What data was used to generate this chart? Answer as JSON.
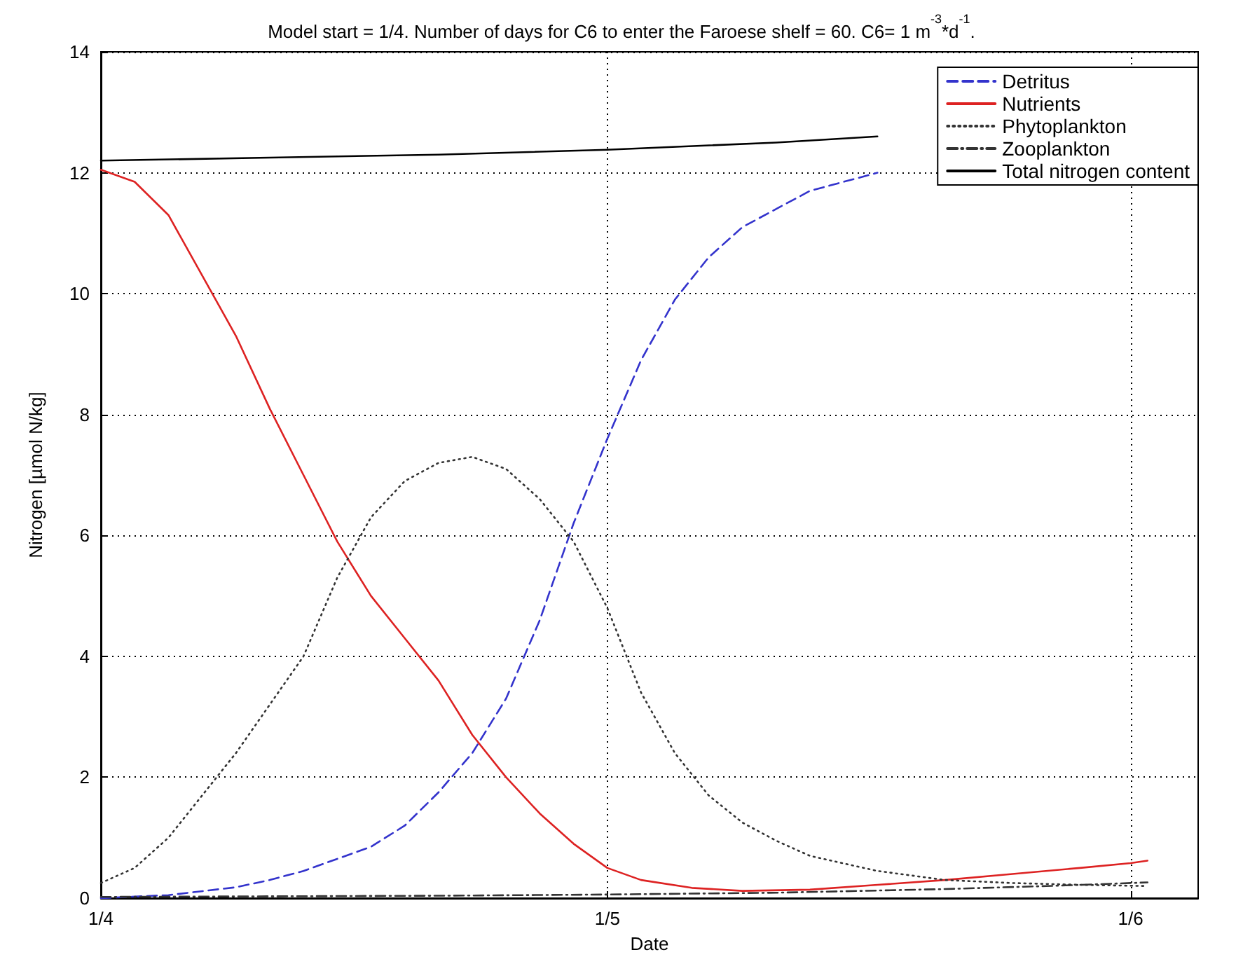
{
  "chart_data": {
    "type": "line",
    "title": "Model start = 1/4. Number of days for C6 to enter the Faroese shelf = 60. C6= 1 m$^{-3}$*d$^{-1}$.",
    "xlabel": "Date",
    "ylabel": "Nitrogen [µmol N/kg]",
    "xlim": [
      "--04-01",
      "--06-05"
    ],
    "xticks": [
      {
        "value": "--04-01",
        "label": "1/4"
      },
      {
        "value": "--05-01",
        "label": "1/5"
      },
      {
        "value": "--06-01",
        "label": "1/6"
      }
    ],
    "ylim": [
      0,
      14
    ],
    "yticks": [
      0,
      2,
      4,
      6,
      8,
      10,
      12,
      14
    ],
    "grid": true,
    "legend": "top right",
    "marker": "none",
    "series": [
      {
        "name": "Detritus",
        "color": "#3333cc",
        "line_style": "dashed",
        "x": [
          "--04-01",
          "--04-05",
          "--04-09",
          "--04-11",
          "--04-13",
          "--04-15",
          "--04-17",
          "--04-19",
          "--04-21",
          "--04-23",
          "--04-25",
          "--04-27",
          "--04-29",
          "--05-01",
          "--05-03",
          "--05-05",
          "--05-07",
          "--05-09",
          "--05-13",
          "--05-17"
        ],
        "values": [
          0,
          0.05,
          0.18,
          0.3,
          0.45,
          0.65,
          0.85,
          1.2,
          1.75,
          2.4,
          3.3,
          4.6,
          6.2,
          7.6,
          8.9,
          9.9,
          10.6,
          11.1,
          11.7,
          12.0
        ]
      },
      {
        "name": "Nutrients",
        "color": "#dd2222",
        "line_style": "solid",
        "x": [
          "--04-01",
          "--04-03",
          "--04-05",
          "--04-08",
          "--04-09",
          "--04-11",
          "--04-13",
          "--04-15",
          "--04-17",
          "--04-19",
          "--04-21",
          "--04-23",
          "--04-25",
          "--04-27",
          "--04-29",
          "--05-01",
          "--05-03",
          "--05-06",
          "--05-09",
          "--05-13",
          "--05-17",
          "--05-21",
          "--05-25",
          "--05-29",
          "--06-01",
          "--06-02"
        ],
        "values": [
          12.05,
          11.85,
          11.3,
          9.8,
          9.3,
          8.1,
          7.0,
          5.9,
          5.0,
          4.3,
          3.6,
          2.7,
          2.0,
          1.4,
          0.9,
          0.5,
          0.3,
          0.17,
          0.12,
          0.14,
          0.22,
          0.3,
          0.4,
          0.5,
          0.58,
          0.62
        ]
      },
      {
        "name": "Phytoplankton",
        "color": "#333333",
        "line_style": "dotted",
        "x": [
          "--04-01",
          "--04-03",
          "--04-05",
          "--04-07",
          "--04-09",
          "--04-11",
          "--04-13",
          "--04-15",
          "--04-17",
          "--04-19",
          "--04-21",
          "--04-23",
          "--04-25",
          "--04-27",
          "--04-29",
          "--05-01",
          "--05-03",
          "--05-05",
          "--05-07",
          "--05-09",
          "--05-11",
          "--05-13",
          "--05-17",
          "--05-21",
          "--05-25",
          "--05-29",
          "--06-02"
        ],
        "values": [
          0.25,
          0.5,
          1.0,
          1.7,
          2.4,
          3.2,
          4.0,
          5.3,
          6.3,
          6.9,
          7.2,
          7.3,
          7.1,
          6.6,
          5.9,
          4.8,
          3.4,
          2.4,
          1.7,
          1.25,
          0.95,
          0.7,
          0.45,
          0.3,
          0.25,
          0.22,
          0.2
        ]
      },
      {
        "name": "Zooplankton",
        "color": "#333333",
        "line_style": "dashdot",
        "x": [
          "--04-01",
          "--04-21",
          "--05-01",
          "--05-11",
          "--05-21",
          "--05-27",
          "--06-02"
        ],
        "values": [
          0.02,
          0.04,
          0.06,
          0.09,
          0.15,
          0.2,
          0.26
        ]
      },
      {
        "name": "Total nitrogen content",
        "color": "#000000",
        "line_style": "solid",
        "x": [
          "--04-01",
          "--04-11",
          "--04-21",
          "--05-01",
          "--05-11",
          "--05-17"
        ],
        "values": [
          12.2,
          12.25,
          12.3,
          12.38,
          12.5,
          12.6
        ]
      }
    ]
  }
}
